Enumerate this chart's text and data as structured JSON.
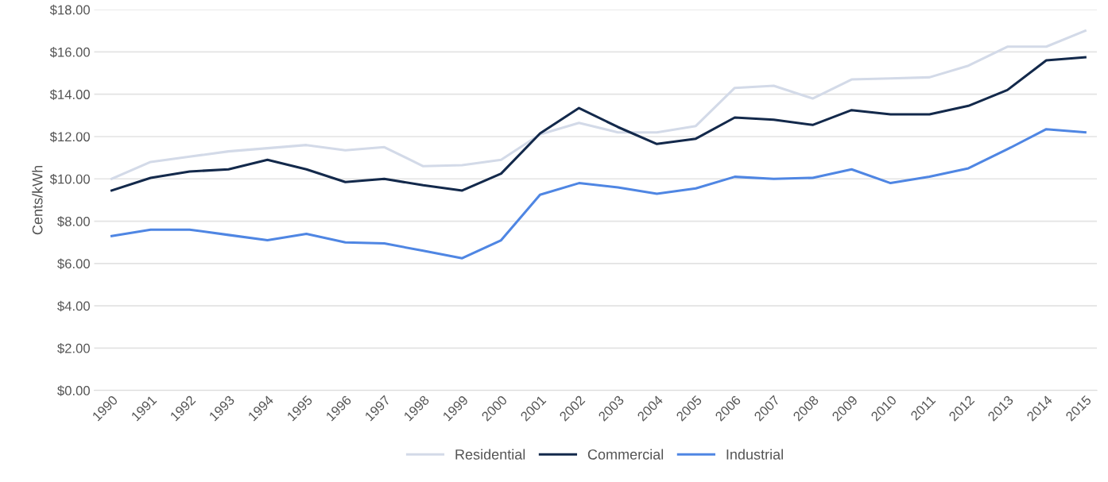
{
  "chart_data": {
    "type": "line",
    "ylabel": "Cents/kWh",
    "categories": [
      "1990",
      "1991",
      "1992",
      "1993",
      "1994",
      "1995",
      "1996",
      "1997",
      "1998",
      "1999",
      "2000",
      "2001",
      "2002",
      "2003",
      "2004",
      "2005",
      "2006",
      "2007",
      "2008",
      "2009",
      "2010",
      "2011",
      "2012",
      "2013",
      "2014",
      "2015"
    ],
    "series": [
      {
        "name": "Residential",
        "color": "#d3dae8",
        "values": [
          10.0,
          10.8,
          11.05,
          11.3,
          11.45,
          11.6,
          11.35,
          11.5,
          10.6,
          10.65,
          10.9,
          12.1,
          12.65,
          12.2,
          12.2,
          12.5,
          14.3,
          14.4,
          13.8,
          14.7,
          14.75,
          14.8,
          15.35,
          16.25,
          16.25,
          17.0
        ]
      },
      {
        "name": "Commercial",
        "color": "#13294b",
        "values": [
          9.45,
          10.05,
          10.35,
          10.45,
          10.9,
          10.45,
          9.85,
          10.0,
          9.7,
          9.45,
          10.25,
          12.15,
          13.35,
          12.45,
          11.65,
          11.9,
          12.9,
          12.8,
          12.55,
          13.25,
          13.05,
          13.05,
          13.45,
          14.2,
          15.6,
          15.75
        ]
      },
      {
        "name": "Industrial",
        "color": "#4f86e3",
        "values": [
          7.3,
          7.6,
          7.6,
          7.35,
          7.1,
          7.4,
          7.0,
          6.95,
          6.6,
          6.25,
          7.1,
          9.25,
          9.8,
          9.6,
          9.3,
          9.55,
          10.1,
          10.0,
          10.05,
          10.45,
          9.8,
          10.1,
          10.5,
          11.4,
          12.35,
          12.2
        ]
      }
    ],
    "ylim": [
      0,
      18
    ],
    "yticks": [
      {
        "value": 0,
        "label": "$0.00"
      },
      {
        "value": 2,
        "label": "$2.00"
      },
      {
        "value": 4,
        "label": "$4.00"
      },
      {
        "value": 6,
        "label": "$6.00"
      },
      {
        "value": 8,
        "label": "$8.00"
      },
      {
        "value": 10,
        "label": "$10.00"
      },
      {
        "value": 12,
        "label": "$12.00"
      },
      {
        "value": 14,
        "label": "$14.00"
      },
      {
        "value": 16,
        "label": "$16.00"
      },
      {
        "value": 18,
        "label": "$18.00"
      }
    ],
    "grid": "y",
    "legend": "bottom",
    "marker": "none",
    "line_style": "solid"
  }
}
